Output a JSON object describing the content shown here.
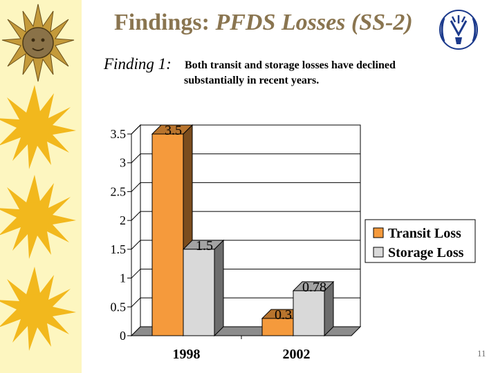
{
  "slide": {
    "title_prefix": "Findings: ",
    "title_emphasis": "PFDS Losses (SS-2)",
    "finding_label": "Finding 1:",
    "finding_line1": "Both transit and storage losses have declined",
    "finding_line2": "substantially in recent years.",
    "page_number": "11"
  },
  "decor": {
    "side_icon": "sun-icon",
    "logo_icon": "wheat-emblem-icon",
    "strip_color": "#fdf6c0",
    "sun_color": "#f2b81d",
    "title_color": "#8a7550"
  },
  "chart_data": {
    "type": "bar",
    "categories": [
      "1998",
      "2002"
    ],
    "series": [
      {
        "name": "Transit Loss",
        "values": [
          3.5,
          0.3
        ],
        "color": "#f59a3c"
      },
      {
        "name": "Storage Loss",
        "values": [
          1.5,
          0.78
        ],
        "color": "#d9d9d9"
      }
    ],
    "data_labels": [
      [
        "3.5",
        "0.3"
      ],
      [
        "1.5",
        "0.78"
      ]
    ],
    "yticks": [
      0,
      0.5,
      1,
      1.5,
      2,
      2.5,
      3,
      3.5
    ],
    "ytick_labels": [
      "0",
      "0.5",
      "1",
      "1.5",
      "2",
      "2.5",
      "3",
      "3.5"
    ],
    "ylim": [
      0,
      3.5
    ],
    "title": "",
    "xlabel": "",
    "ylabel": "",
    "grid": true,
    "legend": "right",
    "style": "3d"
  }
}
